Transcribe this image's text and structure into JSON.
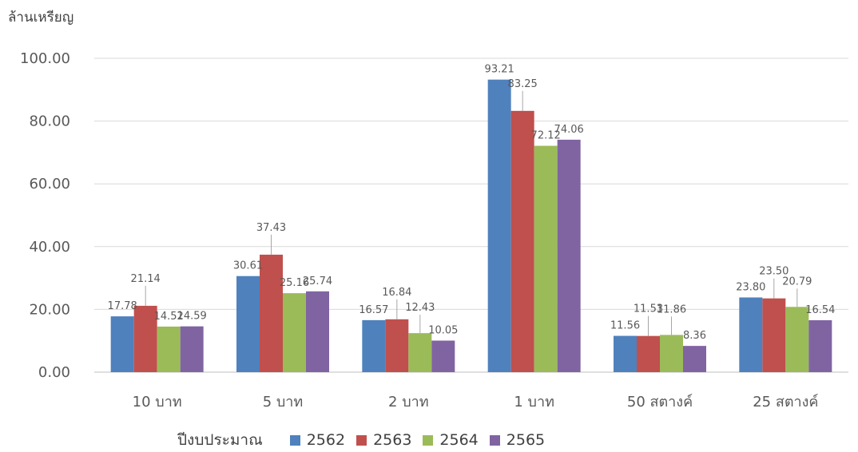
{
  "chart_data": {
    "type": "bar",
    "ylabel": "ล้านเหรียญ",
    "xlabel": "",
    "ylim": [
      0,
      100
    ],
    "ytick_labels": [
      "0.00",
      "20.00",
      "40.00",
      "60.00",
      "80.00",
      "100.00"
    ],
    "grid": true,
    "legend_title": "ปีงบประมาณ",
    "legend_position": "bottom",
    "categories": [
      "10 บาท",
      "5 บาท",
      "2 บาท",
      "1 บาท",
      "50 สตางค์",
      "25 สตางค์"
    ],
    "series": [
      {
        "name": "2562",
        "color": "#4f81bd",
        "values": [
          17.78,
          30.61,
          16.57,
          93.21,
          11.56,
          23.8
        ]
      },
      {
        "name": "2563",
        "color": "#c0504d",
        "values": [
          21.14,
          37.43,
          16.84,
          83.25,
          11.53,
          23.5
        ]
      },
      {
        "name": "2564",
        "color": "#9bbb59",
        "values": [
          14.52,
          25.16,
          12.43,
          72.12,
          11.86,
          20.79
        ]
      },
      {
        "name": "2565",
        "color": "#8064a2",
        "values": [
          14.59,
          25.74,
          10.05,
          74.06,
          8.36,
          16.54
        ]
      }
    ],
    "data_labels": [
      [
        "17.78",
        "30.61",
        "16.57",
        "93.21",
        "11.56",
        "23.80"
      ],
      [
        "21.14",
        "37.43",
        "16.84",
        "83.25",
        "11.53",
        "23.50"
      ],
      [
        "14.52",
        "25.16",
        "12.43",
        "72.12",
        "11.86",
        "20.79"
      ],
      [
        "14.59",
        "25.74",
        "10.05",
        "74.06",
        "8.36",
        "16.54"
      ]
    ]
  }
}
